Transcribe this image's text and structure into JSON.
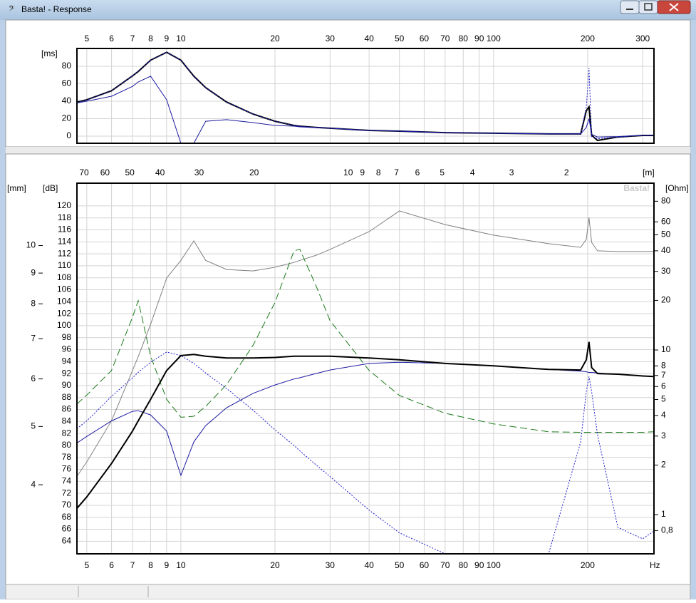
{
  "window": {
    "title": "Basta! - Response"
  },
  "chart_data": [
    {
      "type": "line",
      "y_label": "[ms]",
      "x": [
        4.65,
        5,
        6,
        7,
        7.3,
        8,
        9,
        10,
        11,
        12,
        14,
        17,
        20,
        23,
        24,
        27,
        30,
        40,
        50,
        70,
        100,
        150,
        190,
        198,
        202,
        206,
        215,
        250,
        300,
        326
      ],
      "xlim": [
        4.65,
        326
      ],
      "xscale": "log",
      "xticks": [
        5,
        6,
        7,
        8,
        9,
        10,
        20,
        30,
        40,
        50,
        60,
        70,
        80,
        90,
        100,
        200,
        300
      ],
      "ylim": [
        -8.2,
        100.4
      ],
      "yticks": [
        0,
        20,
        40,
        60,
        80
      ],
      "grid": true,
      "series": [
        {
          "color": "#000000",
          "width": 2,
          "values": [
            39,
            41.6,
            52,
            69,
            74,
            87,
            96,
            87,
            68.6,
            55.5,
            39,
            25.3,
            17,
            12.2,
            11.4,
            10,
            9,
            6.5,
            5.7,
            4,
            3.3,
            2.5,
            2.5,
            29,
            33.5,
            1,
            -4.9,
            -1,
            0.8,
            0.8
          ]
        },
        {
          "color": "#1a1aa0",
          "width": 1,
          "values": [
            38,
            40,
            45.7,
            57,
            62,
            68.6,
            41.6,
            -8.2,
            -8.2,
            17,
            18.8,
            15.5,
            12.2,
            11.4,
            10.6,
            9.8,
            9,
            6.5,
            5.7,
            4,
            3.3,
            2.5,
            2.5,
            10,
            20,
            2,
            -1,
            -0.5,
            0.8,
            0.8
          ]
        },
        {
          "color": "#2020d0",
          "width": 1,
          "dash": "2,2",
          "values": [
            39,
            41.6,
            52,
            69,
            74,
            87,
            96,
            87,
            68.6,
            55.5,
            39,
            25.3,
            17,
            12.2,
            11.4,
            10,
            9,
            6.5,
            5.7,
            4,
            3.3,
            2.5,
            2.5,
            33,
            78,
            -1,
            -3,
            -1,
            0.8,
            0.8
          ]
        }
      ]
    },
    {
      "type": "line",
      "x_unit": "Hz",
      "watermark": "Basta!",
      "x": [
        4.65,
        5,
        6,
        7,
        7.3,
        8,
        9,
        10,
        11,
        12,
        14,
        17,
        20,
        23,
        24,
        27,
        30,
        40,
        50,
        70,
        100,
        150,
        190,
        198,
        202,
        206,
        215,
        250,
        300,
        326
      ],
      "xlim": [
        4.65,
        326
      ],
      "xscale": "log",
      "xticks": [
        5,
        6,
        7,
        8,
        9,
        10,
        20,
        30,
        40,
        50,
        60,
        70,
        80,
        90,
        100,
        200
      ],
      "x2_label": "[m]",
      "x2lim": [
        73.8,
        1.05
      ],
      "x2scale": "log",
      "x2ticks": [
        70,
        60,
        50,
        40,
        30,
        20,
        10,
        9,
        8,
        7,
        6,
        5,
        4,
        3,
        2
      ],
      "y_label": "[dB]",
      "ylim": [
        61.9,
        123.8
      ],
      "yticks": [
        64,
        66,
        68,
        70,
        72,
        74,
        76,
        78,
        80,
        82,
        84,
        86,
        88,
        90,
        92,
        94,
        96,
        98,
        100,
        102,
        104,
        106,
        108,
        110,
        112,
        114,
        116,
        118,
        120
      ],
      "y2_label": "[Ohm]",
      "y2lim": [
        0.578,
        103
      ],
      "y2scale": "log",
      "y2ticks": [
        {
          "value": 0.8,
          "label": "0,8"
        },
        1,
        2,
        3,
        4,
        5,
        6,
        7,
        8,
        10,
        20,
        30,
        40,
        50,
        60,
        80
      ],
      "y3_label": "[mm]",
      "y3lim": [
        3.07,
        12.7
      ],
      "y3scale": "log",
      "y3ticks": [
        4,
        5,
        6,
        7,
        8,
        9,
        10
      ],
      "grid": true,
      "series": [
        {
          "color": "#808080",
          "width": 1,
          "axis": "y2",
          "values": [
            1.71,
            2.09,
            3.72,
            7.5,
            9.1,
            14.3,
            27.3,
            35,
            46,
            35,
            30.8,
            30.2,
            31.8,
            34,
            35,
            37.5,
            40.8,
            52.3,
            69.9,
            57.7,
            49.8,
            44.2,
            42,
            47,
            63.8,
            45,
            40,
            39.6,
            39.6,
            39.6
          ]
        },
        {
          "color": "#1a7a1a",
          "width": 1,
          "dash": "10,5",
          "axis": "y3",
          "values": [
            5.45,
            5.64,
            6.2,
            7.6,
            8.1,
            6.55,
            5.55,
            5.18,
            5.2,
            5.4,
            5.87,
            6.82,
            8.04,
            9.8,
            9.86,
            8.6,
            7.5,
            6.2,
            5.63,
            5.26,
            5.05,
            4.9,
            4.89,
            4.89,
            4.89,
            4.89,
            4.89,
            4.89,
            4.89,
            4.9
          ]
        },
        {
          "color": "#2020d0",
          "width": 1,
          "dash": "2,2",
          "values": [
            82.8,
            84.1,
            88.2,
            91.3,
            92.2,
            93.9,
            95.6,
            95,
            93.7,
            92.1,
            89.5,
            85.9,
            82.6,
            80,
            79.1,
            76.8,
            74.8,
            69.2,
            65.4,
            61.9,
            61.9,
            61.9,
            80.6,
            89,
            91.5,
            89,
            81.8,
            66.3,
            64.4,
            65.7
          ]
        },
        {
          "color": "#1a1aa0",
          "width": 1,
          "values": [
            80.4,
            81.5,
            84.1,
            85.7,
            85.8,
            85.1,
            82.4,
            75,
            80.6,
            83.3,
            86.3,
            88.7,
            90.1,
            91.1,
            91.3,
            92,
            92.6,
            93.7,
            93.9,
            93.7,
            93.3,
            92.7,
            92.4,
            92.3,
            92.2,
            92.2,
            92.1,
            91.9,
            91.6,
            91.5
          ]
        },
        {
          "color": "#000000",
          "width": 2,
          "values": [
            69.5,
            71.4,
            77,
            82.4,
            84.1,
            87.7,
            92.5,
            95,
            95.2,
            94.9,
            94.6,
            94.6,
            94.7,
            94.9,
            94.9,
            94.9,
            94.9,
            94.6,
            94.3,
            93.7,
            93.3,
            92.7,
            92.6,
            94.3,
            97.3,
            93,
            92,
            91.9,
            91.6,
            91.5
          ]
        }
      ]
    }
  ]
}
